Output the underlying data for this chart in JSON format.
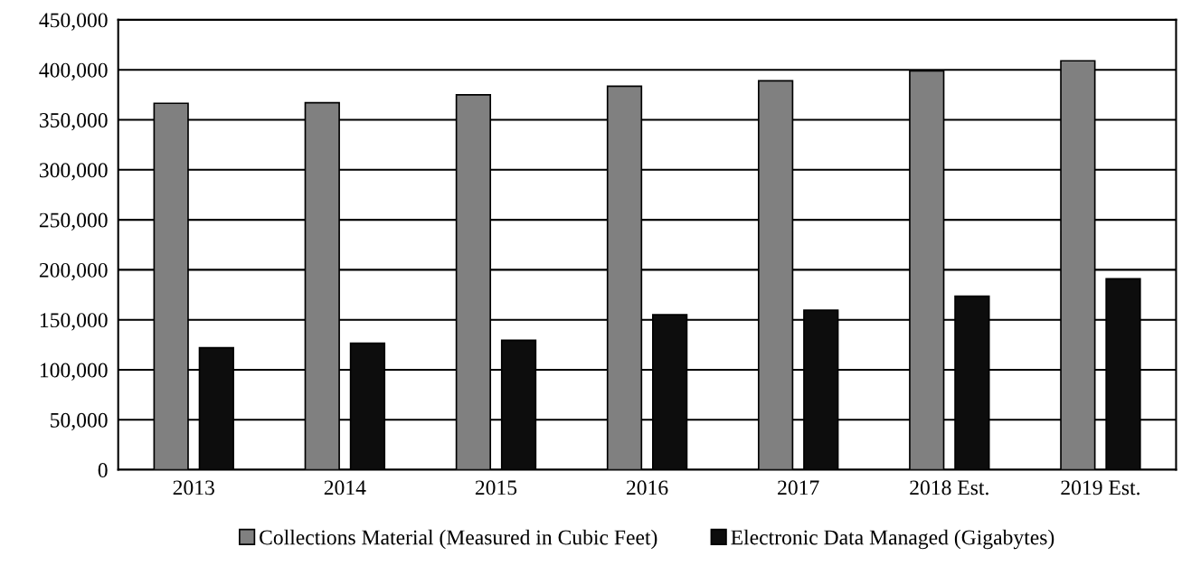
{
  "chart_data": {
    "type": "bar",
    "categories": [
      "2013",
      "2014",
      "2015",
      "2016",
      "2017",
      "2018 Est.",
      "2019 Est."
    ],
    "series": [
      {
        "name": "Collections Material (Measured in Cubic Feet)",
        "color": "#808080",
        "values": [
          366500,
          367000,
          375000,
          383500,
          389000,
          399000,
          409000
        ]
      },
      {
        "name": "Electronic Data Managed (Gigabytes)",
        "color": "#0d0d0d",
        "values": [
          122000,
          126500,
          129500,
          155000,
          159500,
          173500,
          191000
        ]
      }
    ],
    "ylim": [
      0,
      450000
    ],
    "yticks": [
      {
        "value": 0,
        "label": "0"
      },
      {
        "value": 50000,
        "label": "50,000"
      },
      {
        "value": 100000,
        "label": "100,000"
      },
      {
        "value": 150000,
        "label": "150,000"
      },
      {
        "value": 200000,
        "label": "200,000"
      },
      {
        "value": 250000,
        "label": "250,000"
      },
      {
        "value": 300000,
        "label": "300,000"
      },
      {
        "value": 350000,
        "label": "350,000"
      },
      {
        "value": 400000,
        "label": "400,000"
      },
      {
        "value": 450000,
        "label": "450,000"
      }
    ],
    "grid": "y",
    "legend": "bottom"
  }
}
